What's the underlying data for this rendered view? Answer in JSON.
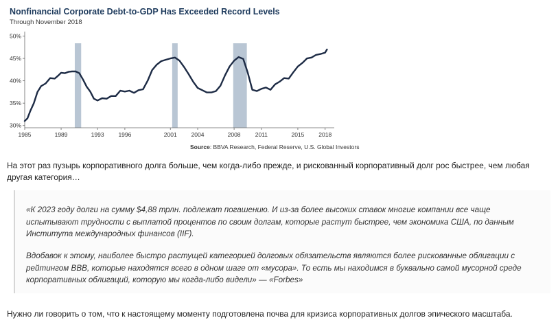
{
  "chart_data": {
    "type": "line",
    "title": "Nonfinancial Corporate Debt-to-GDP Has Exceeded Record Levels",
    "subtitle": "Through November 2018",
    "xlabel": "",
    "ylabel": "",
    "xlim": [
      1985,
      2019
    ],
    "ylim": [
      29.5,
      51
    ],
    "y_ticks": [
      30,
      35,
      40,
      45,
      50
    ],
    "y_tick_labels": [
      "30%",
      "35%",
      "40%",
      "45%",
      "50%"
    ],
    "x_ticks": [
      1985,
      1989,
      1993,
      1996,
      2001,
      2004,
      2008,
      2011,
      2015,
      2018
    ],
    "x_tick_labels": [
      "1985",
      "1989",
      "1993",
      "1996",
      "2001",
      "2004",
      "2008",
      "2011",
      "2015",
      "2018"
    ],
    "grid": false,
    "legend": "none",
    "line_color": "#1d2b45",
    "recession_color": "#b9c6d4",
    "recessions": [
      [
        1990.5,
        1991.2
      ],
      [
        2001.2,
        2001.8
      ],
      [
        2007.9,
        2009.4
      ]
    ],
    "series": [
      {
        "x": [
          1985.0,
          1985.3,
          1985.6,
          1986.0,
          1986.4,
          1986.8,
          1987.3,
          1987.8,
          1988.3,
          1988.7,
          1989.0,
          1989.4,
          1989.8,
          1990.2,
          1990.6,
          1991.0,
          1991.4,
          1991.8,
          1992.2,
          1992.6,
          1993.0,
          1993.5,
          1994.0,
          1994.5,
          1995.0,
          1995.5,
          1996.0,
          1996.5,
          1997.0,
          1997.5,
          1998.0,
          1998.5,
          1999.0,
          1999.5,
          2000.0,
          2000.5,
          2001.0,
          2001.5,
          2002.0,
          2002.5,
          2003.0,
          2003.5,
          2004.0,
          2004.5,
          2005.0,
          2005.5,
          2006.0,
          2006.5,
          2007.0,
          2007.5,
          2008.0,
          2008.5,
          2009.0,
          2009.5,
          2010.0,
          2010.5,
          2011.0,
          2011.5,
          2012.0,
          2012.5,
          2013.0,
          2013.5,
          2014.0,
          2014.5,
          2015.0,
          2015.5,
          2016.0,
          2016.5,
          2017.0,
          2017.5,
          2018.0,
          2018.2
        ],
        "values": [
          31.0,
          31.6,
          33.2,
          35.0,
          37.5,
          38.8,
          39.4,
          40.6,
          40.5,
          41.2,
          41.8,
          41.7,
          42.0,
          42.1,
          42.1,
          41.7,
          40.3,
          38.7,
          37.6,
          36.0,
          35.6,
          36.1,
          36.0,
          36.6,
          36.6,
          37.8,
          37.6,
          37.8,
          37.3,
          37.9,
          38.1,
          40.0,
          42.4,
          43.6,
          44.4,
          44.7,
          45.0,
          45.2,
          44.5,
          43.1,
          41.5,
          39.8,
          38.4,
          37.9,
          37.4,
          37.4,
          37.7,
          38.9,
          41.2,
          43.2,
          44.5,
          45.3,
          44.9,
          41.8,
          38.0,
          37.7,
          38.2,
          38.5,
          38.0,
          39.2,
          39.8,
          40.6,
          40.5,
          41.9,
          43.2,
          44.0,
          45.0,
          45.2,
          45.8,
          46.0,
          46.3,
          47.0
        ]
      }
    ]
  },
  "chart_source": {
    "label": "Source",
    "text": ": BBVA Research, Federal Reserve, U.S. Global Investors"
  },
  "article": {
    "intro": "На этот раз пузырь корпоративного долга больше, чем когда-либо прежде, и рискованный корпоративный долг рос быстрее, чем любая другая категория…",
    "quote_p1": "«К 2023 году долги на сумму $4,88 трлн. подлежат погашению. И из-за более высоких ставок многие компании все чаще испытывают трудности с выплатой процентов по своим долгам, которые растут быстрее, чем экономика США, по данным Института международных финансов (IIF).",
    "quote_p2": "Вдобавок к этому, наиболее быстро растущей категорией долговых обязательств являются более рискованные облигации с рейтингом BBB, которые находятся всего в одном шаге от «мусора». То есть мы находимся в буквально самой мусорной среде корпоративных облигаций, которую мы когда-либо видели» — «Forbes»",
    "conclusion": "Нужно ли говорить о том, что к настоящему моменту подготовлена почва для кризиса корпоративных долгов эпического масштаба."
  }
}
